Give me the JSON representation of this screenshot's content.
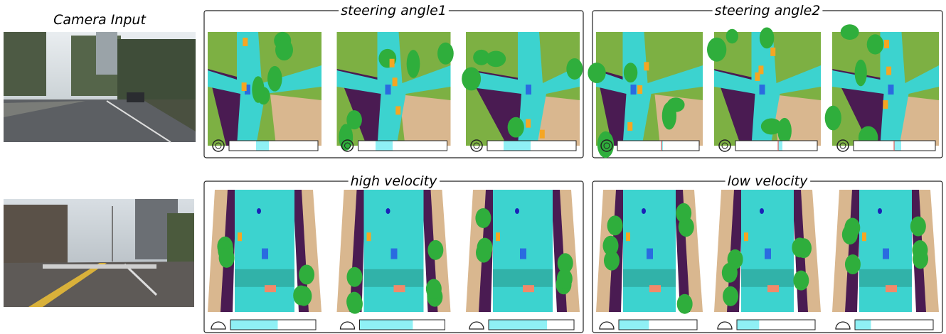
{
  "camera_label": "Camera Input",
  "panels": [
    {
      "title": "steering angle1"
    },
    {
      "title": "steering angle2"
    },
    {
      "title": "high velocity"
    },
    {
      "title": "low velocity"
    }
  ]
}
